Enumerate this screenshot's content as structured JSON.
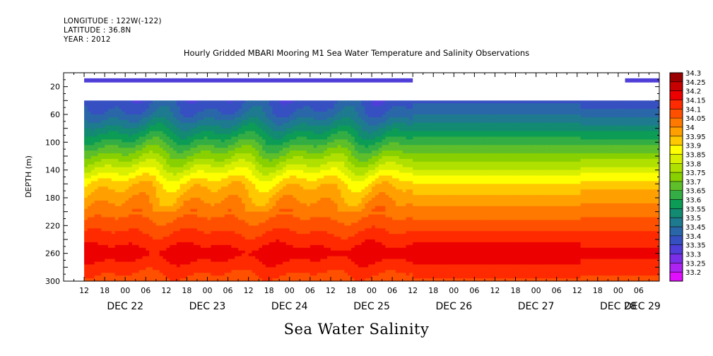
{
  "header": {
    "longitude": "LONGITUDE : 122W(-122)",
    "latitude": "LATITUDE : 36.8N",
    "year": "YEAR : 2012"
  },
  "chart_data": {
    "type": "heatmap",
    "title": "Hourly Gridded MBARI Mooring M1 Sea Water Temperature and Salinity Observations",
    "subtitle": "Sea Water Salinity",
    "ylabel": "DEPTH (m)",
    "xlabel": "",
    "ylim": [
      300,
      0
    ],
    "xlim_hours": [
      0,
      174
    ],
    "y_ticks": [
      20,
      60,
      100,
      140,
      180,
      220,
      260,
      300
    ],
    "x_hour_labels": [
      "12",
      "18",
      "00",
      "06",
      "12",
      "18",
      "00",
      "06",
      "12",
      "18",
      "00",
      "06",
      "12",
      "18",
      "00",
      "06",
      "12",
      "18",
      "00",
      "06",
      "12",
      "18",
      "00",
      "06",
      "12",
      "18",
      "00",
      "06"
    ],
    "x_date_labels": [
      "DEC 22",
      "DEC 23",
      "DEC 24",
      "DEC 25",
      "DEC 26",
      "DEC 27",
      "DEC 28",
      "DEC 29"
    ],
    "colorbar": {
      "levels": [
        34.3,
        34.25,
        34.2,
        34.15,
        34.1,
        34.05,
        34,
        33.95,
        33.9,
        33.85,
        33.8,
        33.75,
        33.7,
        33.65,
        33.6,
        33.55,
        33.5,
        33.45,
        33.4,
        33.35,
        33.3,
        33.25,
        33.2
      ],
      "colors": [
        "#9b0000",
        "#c70000",
        "#ec0000",
        "#ff2a00",
        "#ff5000",
        "#ff7800",
        "#ffa000",
        "#ffc800",
        "#ffff00",
        "#d8f000",
        "#b0e000",
        "#88d000",
        "#5ebf2a",
        "#33ad44",
        "#0c9c55",
        "#138a72",
        "#1e7a8e",
        "#2a67a8",
        "#3650c2",
        "#4f3ed8",
        "#7a2ee8",
        "#ad23f2",
        "#e010ff"
      ]
    },
    "data_window": {
      "data_start_hour": 6,
      "gap_start_hour": 102,
      "resume_hour": 164,
      "shallow_sensor_depth": 10,
      "deep_top_depth": 40
    },
    "depth_profile_mean": [
      {
        "depth": 10,
        "salinity": 33.35
      },
      {
        "depth": 40,
        "salinity": 33.4
      },
      {
        "depth": 60,
        "salinity": 33.45
      },
      {
        "depth": 80,
        "salinity": 33.55
      },
      {
        "depth": 100,
        "salinity": 33.65
      },
      {
        "depth": 120,
        "salinity": 33.75
      },
      {
        "depth": 140,
        "salinity": 33.85
      },
      {
        "depth": 160,
        "salinity": 33.95
      },
      {
        "depth": 180,
        "salinity": 34.0
      },
      {
        "depth": 200,
        "salinity": 34.05
      },
      {
        "depth": 220,
        "salinity": 34.1
      },
      {
        "depth": 240,
        "salinity": 34.15
      },
      {
        "depth": 260,
        "salinity": 34.2
      },
      {
        "depth": 280,
        "salinity": 34.15
      },
      {
        "depth": 300,
        "salinity": 34.1
      }
    ]
  }
}
